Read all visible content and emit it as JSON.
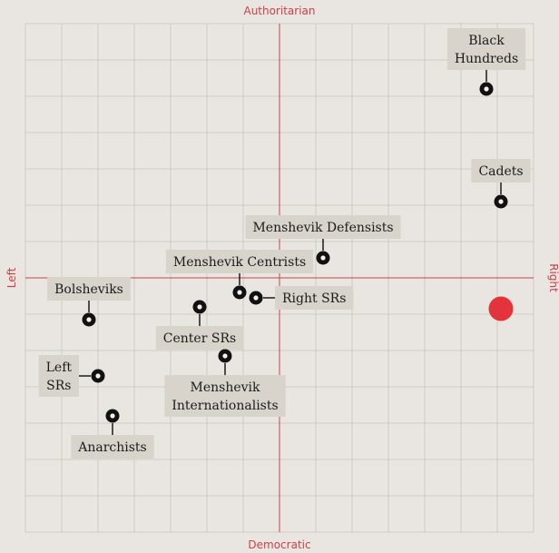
{
  "chart_data": {
    "type": "scatter",
    "axes": {
      "top": "Authoritarian",
      "bottom": "Democratic",
      "left": "Left",
      "right": "Right"
    },
    "xlim": [
      -7,
      7
    ],
    "ylim": [
      -7,
      7
    ],
    "grid": true,
    "points": [
      {
        "name": "Black Hundreds",
        "lines": [
          "Black",
          "Hundreds"
        ],
        "x": 5.7,
        "y": 5.2,
        "label_pos": "above"
      },
      {
        "name": "Cadets",
        "lines": [
          "Cadets"
        ],
        "x": 6.1,
        "y": 2.1,
        "label_pos": "above"
      },
      {
        "name": "Menshevik Defensists",
        "lines": [
          "Menshevik Defensists"
        ],
        "x": 1.2,
        "y": 0.55,
        "label_pos": "above"
      },
      {
        "name": "Menshevik Centrists",
        "lines": [
          "Menshevik Centrists"
        ],
        "x": -1.1,
        "y": -0.4,
        "label_pos": "above"
      },
      {
        "name": "Right SRs",
        "lines": [
          "Right SRs"
        ],
        "x": -0.65,
        "y": -0.55,
        "label_pos": "right"
      },
      {
        "name": "Bolsheviks",
        "lines": [
          "Bolsheviks"
        ],
        "x": -5.25,
        "y": -1.15,
        "label_pos": "above"
      },
      {
        "name": "Center SRs",
        "lines": [
          "Center SRs"
        ],
        "x": -2.2,
        "y": -0.8,
        "label_pos": "below"
      },
      {
        "name": "Menshevik Internationalists",
        "lines": [
          "Menshevik",
          "Internationalists"
        ],
        "x": -1.5,
        "y": -2.15,
        "label_pos": "below"
      },
      {
        "name": "Left SRs",
        "lines": [
          "Left",
          "SRs"
        ],
        "x": -5.0,
        "y": -2.7,
        "label_pos": "left"
      },
      {
        "name": "Anarchists",
        "lines": [
          "Anarchists"
        ],
        "x": -4.6,
        "y": -3.8,
        "label_pos": "below"
      }
    ],
    "highlight": {
      "x": 6.1,
      "y": -0.85,
      "color": "#e3333b"
    }
  }
}
